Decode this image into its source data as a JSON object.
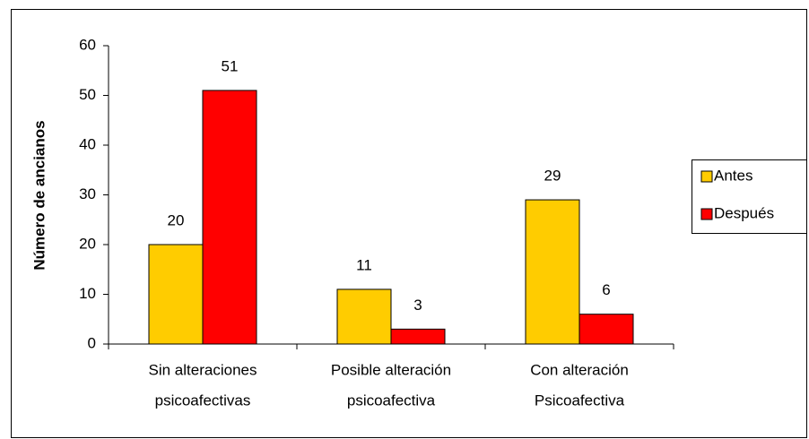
{
  "chart_data": {
    "type": "bar",
    "ylabel": "Número de ancianos",
    "categories": [
      [
        "Sin alteraciones",
        "psicoafectivas"
      ],
      [
        "Posible alteración",
        "psicoafectiva"
      ],
      [
        "Con alteración",
        "Psicoafectiva"
      ]
    ],
    "series": [
      {
        "name": "Antes",
        "color": "#ffcc00",
        "values": [
          20,
          11,
          29
        ]
      },
      {
        "name": "Después",
        "color": "#ff0000",
        "values": [
          51,
          3,
          6
        ]
      }
    ],
    "ylim": [
      0,
      60
    ],
    "yticks": [
      0,
      10,
      20,
      30,
      40,
      50,
      60
    ],
    "legend": "right"
  }
}
